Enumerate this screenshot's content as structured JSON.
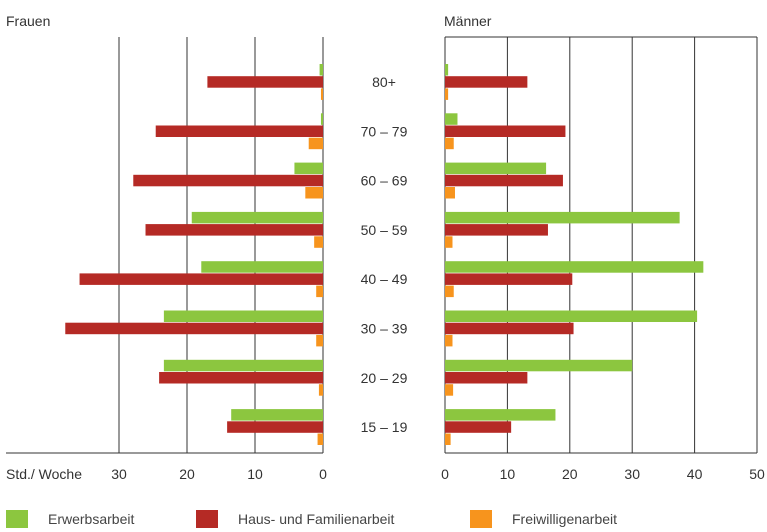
{
  "chart_data": {
    "type": "bar",
    "orientation": "horizontal",
    "layout": "butterfly",
    "categories": [
      "80+",
      "70 – 79",
      "60 – 69",
      "50 – 59",
      "40 – 49",
      "30 – 39",
      "20 – 29",
      "15 – 19"
    ],
    "panels": [
      {
        "title": "Frauen",
        "side": "left",
        "xlabel": "Std./ Woche",
        "xlim": [
          0,
          38
        ],
        "ticks": [
          30,
          20,
          10,
          0
        ],
        "series": [
          {
            "name": "Erwerbsarbeit",
            "color": "#8cc63f",
            "values": [
              0.5,
              0.3,
              4.2,
              19.3,
              17.9,
              23.4,
              23.4,
              13.5
            ]
          },
          {
            "name": "Haus- und Familienarbeit",
            "color": "#b52a25",
            "values": [
              17.0,
              24.6,
              27.9,
              26.1,
              35.8,
              37.9,
              24.1,
              14.1
            ]
          },
          {
            "name": "Freiwilligenarbeit",
            "color": "#f7941d",
            "values": [
              0.3,
              2.1,
              2.6,
              1.3,
              1.0,
              1.0,
              0.6,
              0.8
            ]
          }
        ]
      },
      {
        "title": "Männer",
        "side": "right",
        "xlim": [
          0,
          50
        ],
        "ticks": [
          0,
          10,
          20,
          30,
          40,
          50
        ],
        "series": [
          {
            "name": "Erwerbsarbeit",
            "color": "#8cc63f",
            "values": [
              0.5,
              2.0,
              16.2,
              37.6,
              41.4,
              40.4,
              30.0,
              17.7
            ]
          },
          {
            "name": "Haus- und Familienarbeit",
            "color": "#b52a25",
            "values": [
              13.2,
              19.3,
              18.9,
              16.5,
              20.4,
              20.6,
              13.2,
              10.6
            ]
          },
          {
            "name": "Freiwilligenarbeit",
            "color": "#f7941d",
            "values": [
              0.5,
              1.4,
              1.6,
              1.2,
              1.4,
              1.2,
              1.3,
              0.9
            ]
          }
        ]
      }
    ],
    "grid": true,
    "legend_position": "bottom"
  },
  "colors": {
    "erwerbsarbeit": "#8cc63f",
    "hausarbeit": "#b52a25",
    "freiwilligenarbeit": "#f7941d",
    "gridline": "#333333"
  }
}
